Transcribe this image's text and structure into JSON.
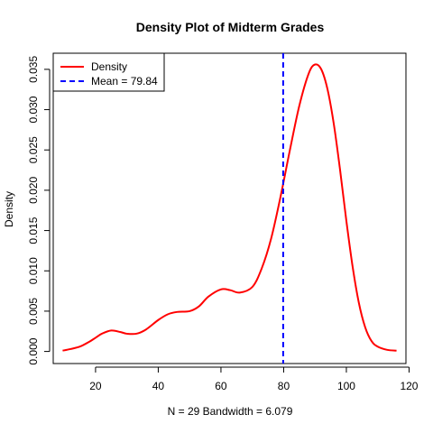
{
  "chart_data": {
    "type": "line",
    "title": "Density Plot of Midterm Grades",
    "xlabel": "N = 29   Bandwidth = 6.079",
    "ylabel": "Density",
    "xlim": [
      6.5,
      119
    ],
    "ylim": [
      -0.0015,
      0.037
    ],
    "x_ticks": [
      20,
      40,
      60,
      80,
      100,
      120
    ],
    "x_tick_labels": [
      "20",
      "40",
      "60",
      "80",
      "100",
      "120"
    ],
    "y_ticks": [
      0,
      0.005,
      0.01,
      0.015,
      0.02,
      0.025,
      0.03,
      0.035
    ],
    "y_tick_labels": [
      "0.000",
      "0.005",
      "0.010",
      "0.015",
      "0.020",
      "0.025",
      "0.030",
      "0.035"
    ],
    "grid": false,
    "legend_position": "top-left",
    "series": [
      {
        "name": "Density",
        "color": "#ff0000",
        "x": [
          9.5,
          12,
          15,
          18,
          20,
          22,
          25,
          28,
          30,
          33,
          36,
          40,
          43,
          46,
          50,
          53,
          56,
          60,
          63,
          66,
          70,
          73,
          76,
          79,
          82,
          85,
          88,
          90,
          92,
          94,
          96,
          98,
          100,
          102,
          104,
          106,
          108,
          110,
          113,
          116
        ],
        "y": [
          0.0001,
          0.0003,
          0.0006,
          0.0012,
          0.0017,
          0.0022,
          0.0026,
          0.0024,
          0.0022,
          0.0022,
          0.0027,
          0.0039,
          0.0046,
          0.0049,
          0.005,
          0.0056,
          0.0068,
          0.0077,
          0.0076,
          0.0073,
          0.008,
          0.0103,
          0.014,
          0.0192,
          0.025,
          0.0305,
          0.0345,
          0.0356,
          0.035,
          0.0325,
          0.0282,
          0.0225,
          0.0162,
          0.0105,
          0.006,
          0.003,
          0.0013,
          0.0006,
          0.0002,
          0.0001
        ]
      }
    ],
    "reference_lines": [
      {
        "name": "Mean = 79.84",
        "x": 79.84,
        "color": "#0000ff",
        "style": "dashed"
      }
    ]
  }
}
